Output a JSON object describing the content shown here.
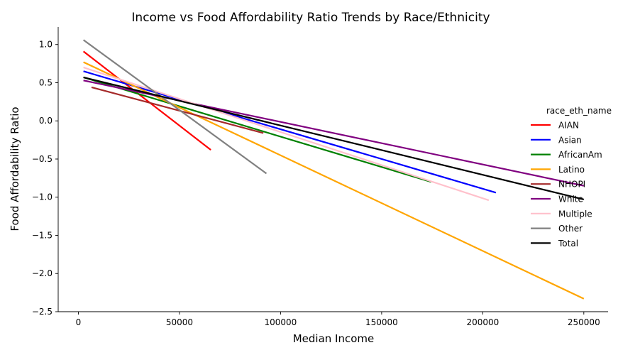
{
  "chart_data": {
    "type": "line",
    "title": "Income vs Food Affordability Ratio Trends by Race/Ethnicity",
    "xlabel": "Median Income",
    "ylabel": "Food Affordability Ratio",
    "xlim": [
      -10000,
      262000
    ],
    "ylim": [
      -2.5,
      1.23
    ],
    "x_ticks": [
      0,
      50000,
      100000,
      150000,
      200000,
      250000
    ],
    "y_ticks": [
      1.0,
      0.5,
      0.0,
      -0.5,
      -1.0,
      -1.5,
      -2.0,
      -2.5
    ],
    "x_tick_labels": [
      "0",
      "50000",
      "100000",
      "150000",
      "200000",
      "250000"
    ],
    "y_tick_labels": [
      "1.0",
      "0.5",
      "0.0",
      "−0.5",
      "−1.0",
      "−1.5",
      "−2.0",
      "−2.5"
    ],
    "grid": false,
    "legend": {
      "title": "race_eth_name",
      "placement": "right"
    },
    "series": [
      {
        "name": "AIAN",
        "color": "#ff0000",
        "x": [
          2500,
          65500
        ],
        "y": [
          0.91,
          -0.38
        ]
      },
      {
        "name": "Asian",
        "color": "#0000ff",
        "x": [
          2500,
          206500
        ],
        "y": [
          0.65,
          -0.94
        ]
      },
      {
        "name": "AfricanAm",
        "color": "#008000",
        "x": [
          2500,
          174500
        ],
        "y": [
          0.57,
          -0.8
        ]
      },
      {
        "name": "Latino",
        "color": "#ffa500",
        "x": [
          2500,
          250000
        ],
        "y": [
          0.77,
          -2.33
        ]
      },
      {
        "name": "NHOPI",
        "color": "#a52a2a",
        "x": [
          6500,
          91500
        ],
        "y": [
          0.44,
          -0.16
        ]
      },
      {
        "name": "White",
        "color": "#800080",
        "x": [
          2500,
          250000
        ],
        "y": [
          0.53,
          -0.85
        ]
      },
      {
        "name": "Multiple",
        "color": "#ffc0cb",
        "x": [
          2500,
          203000
        ],
        "y": [
          0.7,
          -1.04
        ]
      },
      {
        "name": "Other",
        "color": "#808080",
        "x": [
          2500,
          93000
        ],
        "y": [
          1.06,
          -0.69
        ]
      },
      {
        "name": "Total",
        "color": "#000000",
        "x": [
          2500,
          250000
        ],
        "y": [
          0.57,
          -1.03
        ]
      }
    ]
  }
}
